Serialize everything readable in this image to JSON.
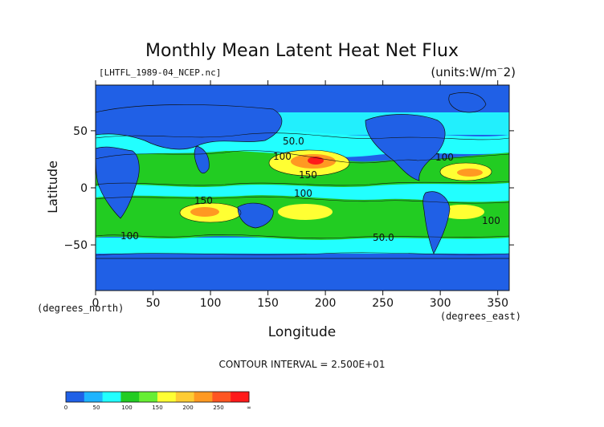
{
  "chart_data": {
    "type": "heatmap",
    "title": "Monthly Mean Latent Heat Net Flux",
    "subtitle": "[LHTFL_1989-04_NCEP.nc]",
    "units": "(units:W/m^2)",
    "xlabel": "Longitude",
    "ylabel": "Latitude",
    "x_unit_label": "(degrees_east)",
    "y_unit_label": "(degrees_north)",
    "xlim": [
      0,
      360
    ],
    "ylim": [
      -90,
      90
    ],
    "x_ticks": [
      "0",
      "50",
      "100",
      "150",
      "200",
      "250",
      "300",
      "350"
    ],
    "y_ticks": [
      "50",
      "0",
      "−50"
    ],
    "contour_interval_text": "CONTOUR INTERVAL = 2.500E+01",
    "contour_labels": [
      "50.0",
      "100",
      "150",
      "100",
      "100",
      "150",
      "100",
      "100",
      "50.0"
    ],
    "colorbar": {
      "ticks": [
        "0",
        "50",
        "100",
        "150",
        "200",
        "250",
        "∞"
      ],
      "colors": [
        "#2060e6",
        "#1fb4ff",
        "#22ffff",
        "#22cc22",
        "#66ee33",
        "#ffff33",
        "#ffcc33",
        "#ff9922",
        "#ff5522",
        "#ff1a1a"
      ]
    }
  }
}
